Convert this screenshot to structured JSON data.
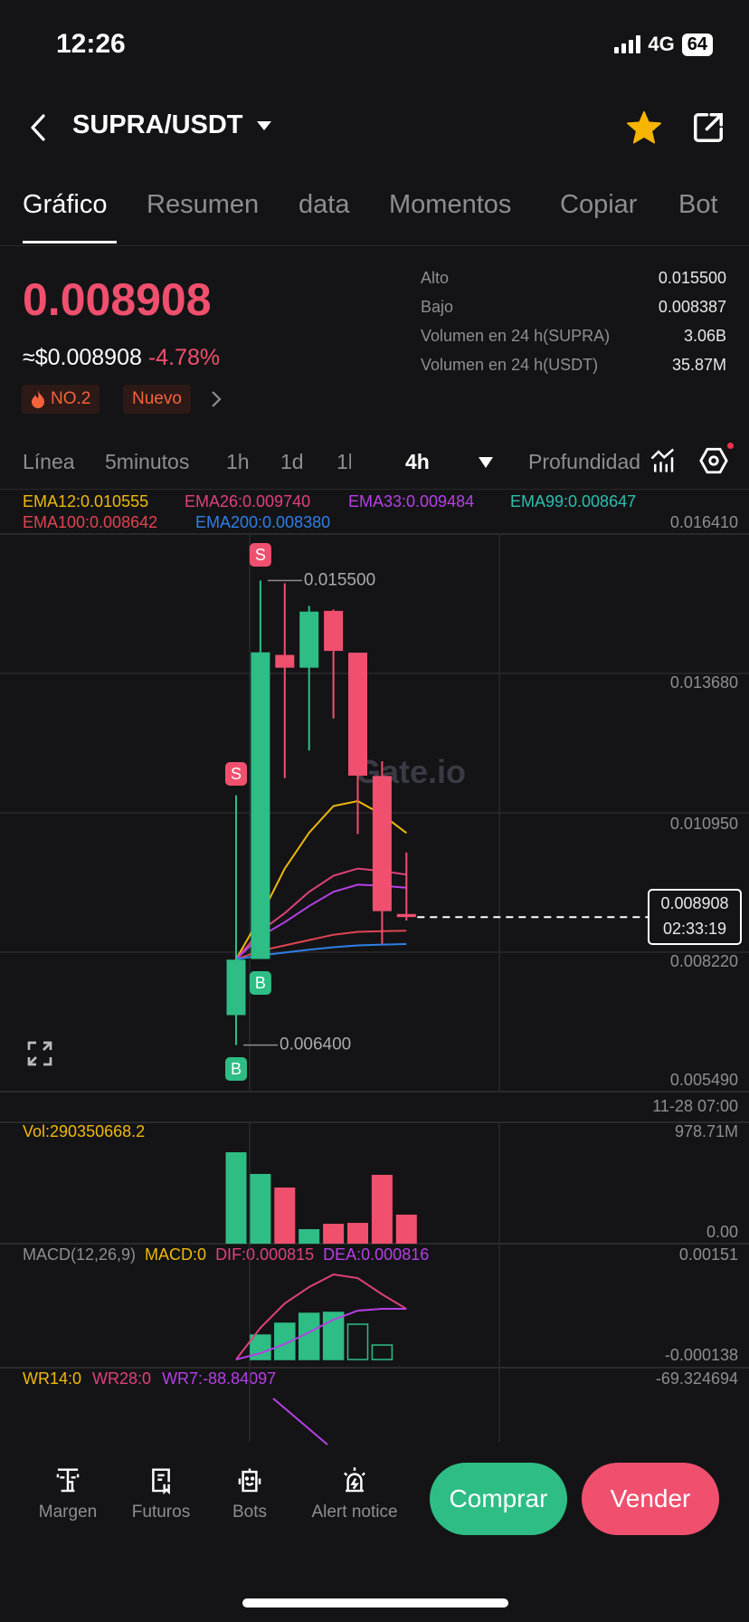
{
  "status_bar": {
    "time": "12:26",
    "network": "4G",
    "battery": "64"
  },
  "header": {
    "pair": "SUPRA/USDT",
    "icons": [
      "back-chevron-icon",
      "caret-down-icon",
      "star-icon",
      "share-icon"
    ]
  },
  "tabs": [
    {
      "label": "Gráfico",
      "active": true
    },
    {
      "label": "Resumen"
    },
    {
      "label": "data"
    },
    {
      "label": "Momentos"
    },
    {
      "label": "Copiar"
    },
    {
      "label": "Bot"
    }
  ],
  "ticker": {
    "price": "0.008908",
    "usd_price": "≈$0.008908",
    "change": "-4.78%",
    "badges": [
      "NO.2",
      "Nuevo"
    ],
    "stats": [
      {
        "label": "Alto",
        "value": "0.015500"
      },
      {
        "label": "Bajo",
        "value": "0.008387"
      },
      {
        "label": "Volumen en 24 h(SUPRA)",
        "value": "3.06B"
      },
      {
        "label": "Volumen en 24 h(USDT)",
        "value": "35.87M"
      }
    ]
  },
  "timeframes": {
    "items": [
      "Línea",
      "5minutos",
      "1h",
      "1d",
      "1l"
    ],
    "selected": "4h",
    "more": "Profundidad"
  },
  "colors": {
    "up": "#2ebd85",
    "down": "#f0506e",
    "ema12": "#f0b90b",
    "ema26": "#e0407f",
    "ema33": "#b640e6",
    "ema99": "#2dbfb0",
    "ema100": "#e04452",
    "ema200": "#2f7fe6"
  },
  "chart_data": [
    {
      "type": "candlestick",
      "legend": [
        {
          "key": "ema12",
          "text": "EMA12:0.010555"
        },
        {
          "key": "ema26",
          "text": "EMA26:0.009740"
        },
        {
          "key": "ema33",
          "text": "EMA33:0.009484"
        },
        {
          "key": "ema99",
          "text": "EMA99:0.008647"
        },
        {
          "key": "ema100",
          "text": "EMA100:0.008642"
        },
        {
          "key": "ema200",
          "text": "EMA200:0.008380"
        }
      ],
      "y_ticks": [
        "0.016410",
        "0.013680",
        "0.010950",
        "0.008220",
        "0.005490"
      ],
      "ylim": [
        0.00549,
        0.01641
      ],
      "x_tick": "11-28 07:00",
      "candles": [
        {
          "o": 0.006988,
          "h": 0.011293,
          "l": 0.0064,
          "c": 0.008073
        },
        {
          "o": 0.008087,
          "h": 0.0155,
          "l": 0.008087,
          "c": 0.014093
        },
        {
          "o": 0.014043,
          "h": 0.015443,
          "l": 0.011628,
          "c": 0.013792
        },
        {
          "o": 0.013792,
          "h": 0.015004,
          "l": 0.012168,
          "c": 0.014891
        },
        {
          "o": 0.014905,
          "h": 0.014933,
          "l": 0.012798,
          "c": 0.014121
        },
        {
          "o": 0.014086,
          "h": 0.014086,
          "l": 0.010536,
          "c": 0.011678
        },
        {
          "o": 0.011671,
          "h": 0.011959,
          "l": 0.008388,
          "c": 0.009024
        },
        {
          "o": 0.008968,
          "h": 0.010173,
          "l": 0.00884,
          "c": 0.008908
        }
      ],
      "ema": {
        "ema12": [
          0.008082,
          0.008914,
          0.009858,
          0.010561,
          0.011083,
          0.01118,
          0.010915,
          0.010555
        ],
        "ema26": [
          0.008082,
          0.008631,
          0.008985,
          0.009403,
          0.009718,
          0.009858,
          0.009808,
          0.00974
        ],
        "ema33": [
          0.008082,
          0.008528,
          0.008808,
          0.009123,
          0.009403,
          0.009542,
          0.009521,
          0.009484
        ],
        "ema100": [
          0.008082,
          0.008248,
          0.008353,
          0.008457,
          0.008562,
          0.008618,
          0.008632,
          0.008642
        ],
        "ema200": [
          0.008082,
          0.008156,
          0.008213,
          0.008268,
          0.008318,
          0.008353,
          0.008368,
          0.00838
        ]
      },
      "markers": {
        "high_label": "0.015500",
        "low_label": "0.006400",
        "sell": "S",
        "buy": "B"
      },
      "last_price": {
        "value": "0.008908",
        "countdown": "02:33:19"
      },
      "watermark": "Gate.io"
    },
    {
      "type": "bar",
      "title": "Vol:290350668.2",
      "y_ticks": [
        "978.71M",
        "0.00"
      ],
      "ylim": [
        0,
        978710000
      ],
      "values": [
        915000000,
        698000000,
        562000000,
        145000000,
        199000000,
        208000000,
        689000000,
        290350668.2
      ]
    },
    {
      "type": "macd",
      "legend": [
        {
          "text": "MACD(12,26,9)",
          "color": "#8d8d93"
        },
        {
          "text": "MACD:0",
          "color": "#f0b90b"
        },
        {
          "text": "DIF:0.000815",
          "color": "#e0407f"
        },
        {
          "text": "DEA:0.000816",
          "color": "#b640e6"
        }
      ],
      "y_ticks": [
        "0.00151",
        "-0.000138"
      ],
      "ylim": [
        -0.000138,
        0.00151
      ],
      "hist": [
        0,
        0.000393,
        0.000583,
        0.000743,
        0.000758,
        0.000568,
        0.000233,
        0
      ],
      "dif": [
        0,
        0.00051,
        0.000903,
        0.001166,
        0.00137,
        0.001311,
        0.001049,
        0.000815
      ],
      "dea": [
        0,
        0.000102,
        0.000248,
        0.000437,
        0.000641,
        0.000787,
        0.000816,
        0.000816
      ]
    },
    {
      "type": "line",
      "legend": [
        {
          "text": "WR14:0",
          "color": "#f0b90b"
        },
        {
          "text": "WR28:0",
          "color": "#e0407f"
        },
        {
          "text": "WR7:-88.84097",
          "color": "#b640e6"
        }
      ],
      "y_ticks": [
        "-69.324694"
      ]
    }
  ],
  "bottom_nav": {
    "items": [
      {
        "label": "Margen",
        "icon": "margin-icon"
      },
      {
        "label": "Futuros",
        "icon": "futures-icon"
      },
      {
        "label": "Bots",
        "icon": "bot-icon"
      },
      {
        "label": "Alert notice",
        "icon": "alarm-icon"
      }
    ],
    "buy": "Comprar",
    "sell": "Vender"
  }
}
